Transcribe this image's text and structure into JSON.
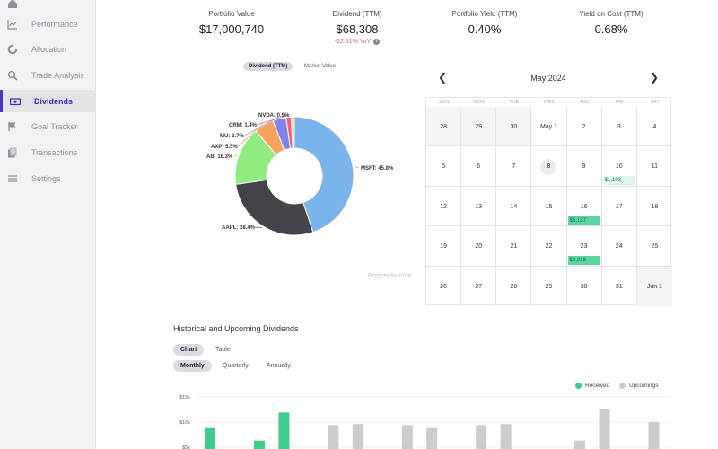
{
  "sidebar": {
    "items": [
      {
        "label": "",
        "icon": "home-icon",
        "active": false
      },
      {
        "label": "Performance",
        "icon": "chart-line-icon",
        "active": false
      },
      {
        "label": "Allocation",
        "icon": "pie-icon",
        "active": false
      },
      {
        "label": "Trade Analysis",
        "icon": "search-icon",
        "active": false
      },
      {
        "label": "Dividends",
        "icon": "cash-icon",
        "active": true
      },
      {
        "label": "Goal Tracker",
        "icon": "flag-icon",
        "active": false
      },
      {
        "label": "Transactions",
        "icon": "document-icon",
        "active": false
      },
      {
        "label": "Settings",
        "icon": "menu-icon",
        "active": false
      }
    ]
  },
  "stats": {
    "portfolio_value": {
      "label": "Portfolio Value",
      "value": "$17,000,740"
    },
    "dividend_ttm": {
      "label": "Dividend (TTM)",
      "value": "$68,308",
      "sub": "-22.51% YoY"
    },
    "portfolio_yield": {
      "label": "Portfolio Yield (TTM)",
      "value": "0.40%"
    },
    "yield_on_cost": {
      "label": "Yield on Cost (TTM)",
      "value": "0.68%"
    }
  },
  "pie_toggle": {
    "dividend": "Dividend (TTM)",
    "market": "Market Value"
  },
  "watermark": "Portseido.com",
  "chart_data": [
    {
      "type": "pie",
      "donut": true,
      "slices": [
        {
          "label": "MSFT: 45.8%",
          "value": 45.8,
          "color": "#79b4ea"
        },
        {
          "label": "AAPL: 28.4%",
          "value": 28.4,
          "color": "#434348"
        },
        {
          "label": "AB: 16.3%",
          "value": 16.3,
          "color": "#90ed7d"
        },
        {
          "label": "AXP: 5.5%",
          "value": 5.5,
          "color": "#f7a35c"
        },
        {
          "label": "MU: 3.7%",
          "value": 3.7,
          "color": "#8085e9"
        },
        {
          "label": "CRM: 1.4%",
          "value": 1.4,
          "color": "#f15c80"
        },
        {
          "label": "NVDA: 0.9%",
          "value": 0.9,
          "color": "#e4d354"
        }
      ]
    },
    {
      "type": "bar",
      "yticks": [
        "$15k",
        "$10k",
        "$5k"
      ],
      "ytick_values": [
        15000,
        10000,
        5000
      ],
      "ylim": [
        0,
        15000
      ],
      "series": [
        {
          "name": "Received",
          "color": "#3fcb8c"
        },
        {
          "name": "Upcomings",
          "color": "#cccccc"
        }
      ],
      "values": [
        {
          "v": 8800,
          "s": 0
        },
        {
          "v": 0,
          "s": 0
        },
        {
          "v": 6300,
          "s": 0
        },
        {
          "v": 11900,
          "s": 0
        },
        {
          "v": 0,
          "s": 0
        },
        {
          "v": 9400,
          "s": 1
        },
        {
          "v": 9600,
          "s": 1
        },
        {
          "v": 0,
          "s": 1
        },
        {
          "v": 9400,
          "s": 1
        },
        {
          "v": 8800,
          "s": 1
        },
        {
          "v": 0,
          "s": 1
        },
        {
          "v": 9400,
          "s": 1
        },
        {
          "v": 9600,
          "s": 1
        },
        {
          "v": 0,
          "s": 1
        },
        {
          "v": 0,
          "s": 1
        },
        {
          "v": 6300,
          "s": 1
        },
        {
          "v": 12500,
          "s": 1
        },
        {
          "v": 0,
          "s": 1
        },
        {
          "v": 10000,
          "s": 1
        }
      ]
    }
  ],
  "calendar": {
    "title": "May 2024",
    "weekdays": [
      "SUN",
      "MON",
      "TUE",
      "WED",
      "THU",
      "FRI",
      "SAT"
    ],
    "weeks": [
      [
        {
          "d": "28",
          "g": true
        },
        {
          "d": "29",
          "g": true
        },
        {
          "d": "30",
          "g": true
        },
        {
          "d": "May 1"
        },
        {
          "d": "2"
        },
        {
          "d": "3"
        },
        {
          "d": "4"
        }
      ],
      [
        {
          "d": "5"
        },
        {
          "d": "6"
        },
        {
          "d": "7"
        },
        {
          "d": "8",
          "today": true
        },
        {
          "d": "9"
        },
        {
          "d": "10",
          "badge": "$1,103",
          "bt": "light"
        },
        {
          "d": "11"
        }
      ],
      [
        {
          "d": "12"
        },
        {
          "d": "13"
        },
        {
          "d": "14"
        },
        {
          "d": "15"
        },
        {
          "d": "16",
          "badge": "$5,137",
          "bt": "strong"
        },
        {
          "d": "17"
        },
        {
          "d": "18"
        }
      ],
      [
        {
          "d": "19"
        },
        {
          "d": "20"
        },
        {
          "d": "21"
        },
        {
          "d": "22"
        },
        {
          "d": "23",
          "badge": "$3,018",
          "bt": "strong"
        },
        {
          "d": "24"
        },
        {
          "d": "25"
        }
      ],
      [
        {
          "d": "26"
        },
        {
          "d": "27"
        },
        {
          "d": "28"
        },
        {
          "d": "29"
        },
        {
          "d": "30"
        },
        {
          "d": "31"
        },
        {
          "d": "Jun 1",
          "g": true
        }
      ]
    ]
  },
  "historical": {
    "title": "Historical and Upcoming Dividends",
    "view_tabs": [
      "Chart",
      "Table"
    ],
    "period_tabs": [
      "Monthly",
      "Quarterly",
      "Annually"
    ]
  }
}
